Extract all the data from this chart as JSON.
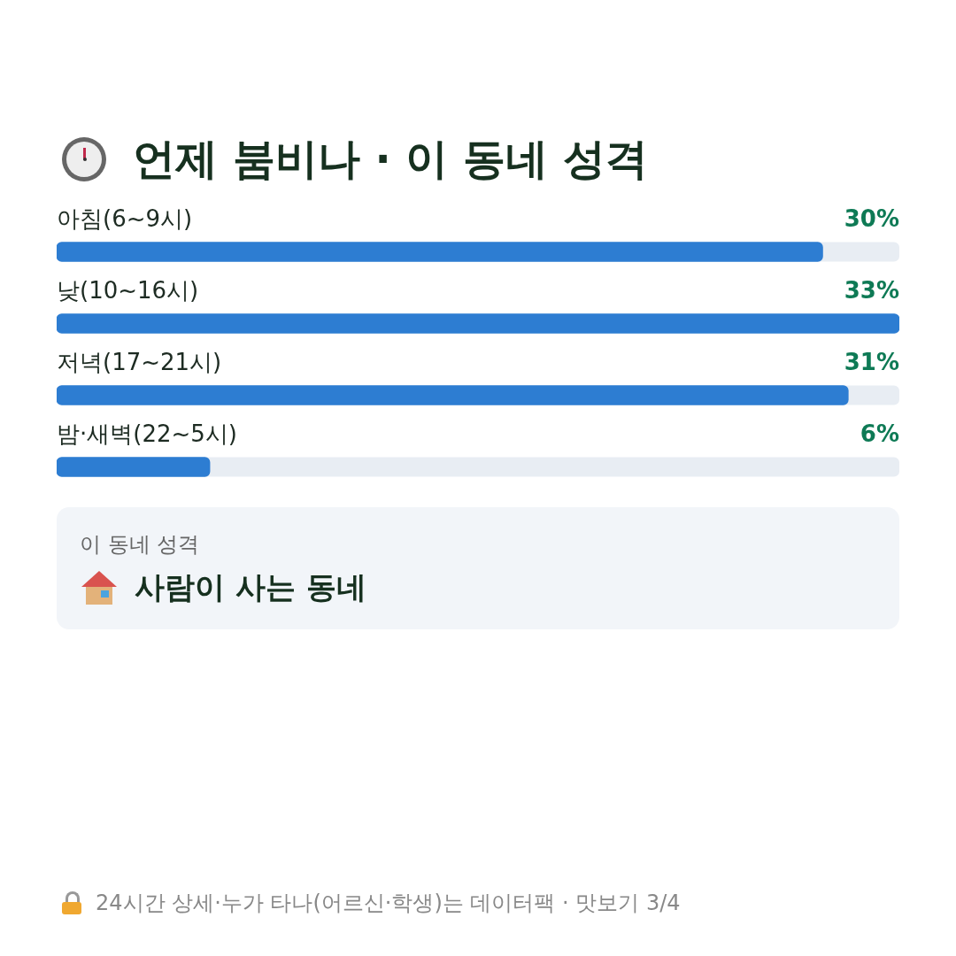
{
  "chart_data": {
    "type": "bar",
    "orientation": "horizontal",
    "title": "언제 붐비나 · 이 동네 성격",
    "categories": [
      "아침(6~9시)",
      "낮(10~16시)",
      "저녁(17~21시)",
      "밤·새벽(22~5시)"
    ],
    "values": [
      30,
      33,
      31,
      6
    ],
    "value_labels": [
      "30%",
      "33%",
      "31%",
      "6%"
    ],
    "color": "#2d7dd2",
    "annotations": [
      "이 동네 성격",
      "사람이 사는 동네",
      "24시간 상세·누가 타나(어르신·학생)는 데이터팩 · 맛보기 3/4"
    ]
  }
}
